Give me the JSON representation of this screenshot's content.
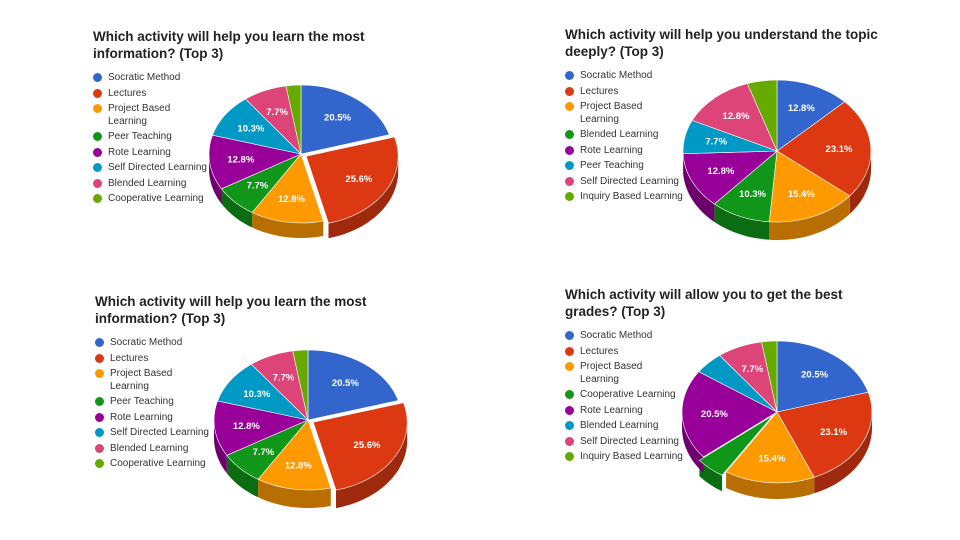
{
  "colors": {
    "blue": "#3366cc",
    "red": "#dc3912",
    "orange": "#ff9900",
    "green": "#109618",
    "purple": "#990099",
    "teal": "#0099c6",
    "pink": "#dd4477",
    "lime": "#66aa00"
  },
  "chart_data": [
    {
      "type": "pie",
      "title": "Which activity will help you learn the most information? (Top 3)",
      "legend_position": "left",
      "three_d": true,
      "slices": [
        {
          "label": "Socratic Method",
          "value": 20.5,
          "display": "20.5%",
          "color": "#3366cc"
        },
        {
          "label": "Lectures",
          "value": 25.6,
          "display": "25.6%",
          "color": "#dc3912",
          "exploded": true
        },
        {
          "label": "Project Based Learning",
          "value": 12.8,
          "display": "12.8%",
          "color": "#ff9900"
        },
        {
          "label": "Peer Teaching",
          "value": 7.7,
          "display": "7.7%",
          "color": "#109618"
        },
        {
          "label": "Rote Learning",
          "value": 12.8,
          "display": "12.8%",
          "color": "#990099"
        },
        {
          "label": "Self Directed Learning",
          "value": 10.3,
          "display": "10.3%",
          "color": "#0099c6"
        },
        {
          "label": "Blended Learning",
          "value": 7.7,
          "display": "7.7%",
          "color": "#dd4477"
        },
        {
          "label": "Cooperative Learning",
          "value": 2.6,
          "display": "",
          "color": "#66aa00"
        }
      ]
    },
    {
      "type": "pie",
      "title": "Which activity will help you understand the topic deeply? (Top 3)",
      "legend_position": "left",
      "three_d": true,
      "slices": [
        {
          "label": "Socratic Method",
          "value": 12.8,
          "display": "12.8%",
          "color": "#3366cc"
        },
        {
          "label": "Lectures",
          "value": 23.1,
          "display": "23.1%",
          "color": "#dc3912"
        },
        {
          "label": "Project Based Learning",
          "value": 15.4,
          "display": "15.4%",
          "color": "#ff9900"
        },
        {
          "label": "Blended Learning",
          "value": 10.3,
          "display": "10.3%",
          "color": "#109618"
        },
        {
          "label": "Rote Learning",
          "value": 12.8,
          "display": "12.8%",
          "color": "#990099"
        },
        {
          "label": "Peer Teaching",
          "value": 7.7,
          "display": "7.7%",
          "color": "#0099c6"
        },
        {
          "label": "Self Directed Learning",
          "value": 12.8,
          "display": "12.8%",
          "color": "#dd4477"
        },
        {
          "label": "Inquiry Based Learning",
          "value": 5.1,
          "display": "",
          "color": "#66aa00"
        }
      ]
    },
    {
      "type": "pie",
      "title": "Which activity will help you learn the most information? (Top 3)",
      "legend_position": "left",
      "three_d": true,
      "slices": [
        {
          "label": "Socratic Method",
          "value": 20.5,
          "display": "20.5%",
          "color": "#3366cc"
        },
        {
          "label": "Lectures",
          "value": 25.6,
          "display": "25.6%",
          "color": "#dc3912",
          "exploded": true
        },
        {
          "label": "Project Based Learning",
          "value": 12.8,
          "display": "12.8%",
          "color": "#ff9900"
        },
        {
          "label": "Peer Teaching",
          "value": 7.7,
          "display": "7.7%",
          "color": "#109618"
        },
        {
          "label": "Rote Learning",
          "value": 12.8,
          "display": "12.8%",
          "color": "#990099"
        },
        {
          "label": "Self Directed Learning",
          "value": 10.3,
          "display": "10.3%",
          "color": "#0099c6"
        },
        {
          "label": "Blended Learning",
          "value": 7.7,
          "display": "7.7%",
          "color": "#dd4477"
        },
        {
          "label": "Cooperative Learning",
          "value": 2.6,
          "display": "",
          "color": "#66aa00"
        }
      ]
    },
    {
      "type": "pie",
      "title": "Which activity will allow you to get the best grades? (Top 3)",
      "legend_position": "left",
      "three_d": true,
      "slices": [
        {
          "label": "Socratic Method",
          "value": 20.5,
          "display": "20.5%",
          "color": "#3366cc"
        },
        {
          "label": "Lectures",
          "value": 23.1,
          "display": "23.1%",
          "color": "#dc3912"
        },
        {
          "label": "Project Based Learning",
          "value": 15.4,
          "display": "15.4%",
          "color": "#ff9900"
        },
        {
          "label": "Cooperative Learning",
          "value": 5.1,
          "display": "",
          "color": "#109618",
          "exploded": true
        },
        {
          "label": "Rote Learning",
          "value": 20.5,
          "display": "20.5%",
          "color": "#990099"
        },
        {
          "label": "Blended Learning",
          "value": 5.1,
          "display": "",
          "color": "#0099c6"
        },
        {
          "label": "Self Directed Learning",
          "value": 7.7,
          "display": "7.7%",
          "color": "#dd4477"
        },
        {
          "label": "Inquiry Based Learning",
          "value": 2.6,
          "display": "",
          "color": "#66aa00"
        }
      ]
    }
  ]
}
